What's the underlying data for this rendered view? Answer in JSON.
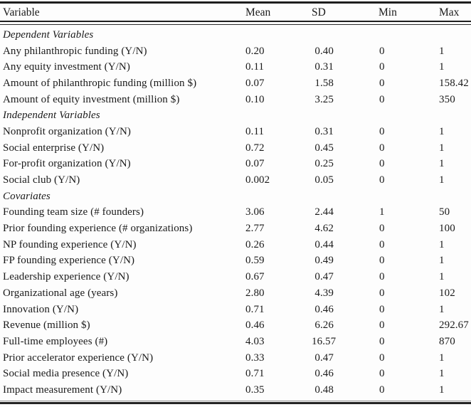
{
  "page": {
    "background_color": "#fdfdfd",
    "text_color": "#1a1a1a",
    "rule_color": "#1e1e1e"
  },
  "table": {
    "columns": [
      "Variable",
      "Mean",
      "SD",
      "Min",
      "Max"
    ],
    "sections": [
      {
        "header": "Dependent Variables",
        "rows": [
          [
            "Any philanthropic funding (Y/N)",
            "0.20",
            "0.40",
            "0",
            "1"
          ],
          [
            "Any equity investment (Y/N)",
            "0.11",
            "0.31",
            "0",
            "1"
          ],
          [
            "Amount of philanthropic funding (million $)",
            "0.07",
            "1.58",
            "0",
            "158.42"
          ],
          [
            "Amount of equity investment (million $)",
            "0.10",
            "3.25",
            "0",
            "350"
          ]
        ]
      },
      {
        "header": "Independent Variables",
        "rows": [
          [
            "Nonprofit organization (Y/N)",
            "0.11",
            "0.31",
            "0",
            "1"
          ],
          [
            "Social enterprise (Y/N)",
            "0.72",
            "0.45",
            "0",
            "1"
          ],
          [
            "For-profit organization (Y/N)",
            "0.07",
            "0.25",
            "0",
            "1"
          ],
          [
            "Social club (Y/N)",
            "0.002",
            "0.05",
            "0",
            "1"
          ]
        ]
      },
      {
        "header": "Covariates",
        "rows": [
          [
            "Founding team size (# founders)",
            "3.06",
            "2.44",
            "1",
            "50"
          ],
          [
            "Prior founding experience (# organizations)",
            "2.77",
            "4.62",
            "0",
            "100"
          ],
          [
            "NP founding experience (Y/N)",
            "0.26",
            "0.44",
            "0",
            "1"
          ],
          [
            "FP founding experience (Y/N)",
            "0.59",
            "0.49",
            "0",
            "1"
          ],
          [
            "Leadership experience (Y/N)",
            "0.67",
            "0.47",
            "0",
            "1"
          ],
          [
            "Organizational age (years)",
            "2.80",
            "4.39",
            "0",
            "102"
          ],
          [
            "Innovation (Y/N)",
            "0.71",
            "0.46",
            "0",
            "1"
          ],
          [
            "Revenue (million $)",
            "0.46",
            "6.26",
            "0",
            "292.67"
          ],
          [
            "Full-time employees (#)",
            "4.03",
            "16.57",
            "0",
            "870"
          ],
          [
            "Prior accelerator experience (Y/N)",
            "0.33",
            "0.47",
            "0",
            "1"
          ],
          [
            "Social media presence (Y/N)",
            "0.71",
            "0.46",
            "0",
            "1"
          ],
          [
            "Impact measurement (Y/N)",
            "0.35",
            "0.48",
            "0",
            "1"
          ]
        ]
      }
    ]
  }
}
